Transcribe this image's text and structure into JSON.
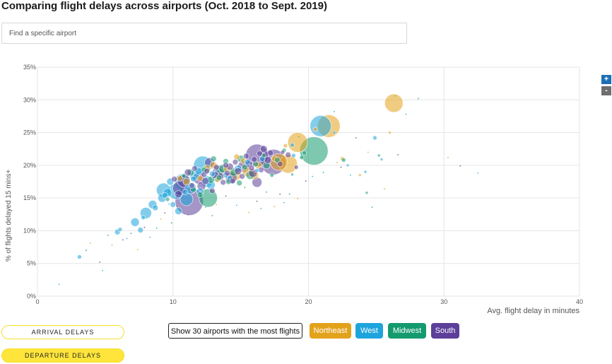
{
  "header": {
    "title": "Comparing flight delays across airports (Oct. 2018 to Sept. 2019)"
  },
  "search": {
    "placeholder": "Find a specific airport"
  },
  "zoom": {
    "in_label": "+",
    "out_label": "-"
  },
  "toggles": {
    "arrival_label": "ARRIVAL DELAYS",
    "departure_label": "DEPARTURE DELAYS"
  },
  "filters": {
    "top30_label": "Show 30 airports with the most flights",
    "regions": [
      {
        "label": "Northeast",
        "color": "#e3a21c"
      },
      {
        "label": "West",
        "color": "#1ea4dd"
      },
      {
        "label": "Midwest",
        "color": "#149a6e"
      },
      {
        "label": "South",
        "color": "#5b3f99"
      }
    ]
  },
  "chart_data": {
    "type": "scatter",
    "title": "",
    "xlabel": "Avg. flight delay in minutes",
    "ylabel": "% of flights delayed 15 mins+",
    "xlim": [
      0,
      40
    ],
    "ylim": [
      0,
      35
    ],
    "x_ticks": [
      0,
      10,
      20,
      30,
      40
    ],
    "x_tick_labels": [
      "0",
      "10",
      "20",
      "30",
      "40"
    ],
    "y_ticks": [
      0,
      5,
      10,
      15,
      20,
      25,
      30,
      35
    ],
    "y_tick_labels": [
      "0%",
      "5%",
      "10%",
      "15%",
      "20%",
      "25%",
      "30%",
      "35%"
    ],
    "grid": true,
    "series": [
      {
        "name": "Northeast",
        "color": "#e3a21c",
        "points": [
          [
            26.3,
            29.5,
            13
          ],
          [
            21.5,
            26,
            16
          ],
          [
            19.2,
            23.5,
            14
          ],
          [
            18.5,
            20.2,
            13
          ],
          [
            17.8,
            20.5,
            12
          ],
          [
            14.6,
            18.5,
            8
          ],
          [
            15.5,
            19,
            7
          ],
          [
            13.5,
            19,
            6
          ],
          [
            16,
            18.5,
            6
          ],
          [
            12.5,
            19.5,
            5
          ],
          [
            14,
            19.5,
            5
          ],
          [
            13,
            20,
            5
          ],
          [
            15.2,
            20.7,
            4
          ],
          [
            12,
            18,
            4
          ],
          [
            16.3,
            20,
            5
          ],
          [
            17.5,
            21,
            4
          ],
          [
            22.5,
            21,
            3
          ],
          [
            23.8,
            18.5,
            2
          ],
          [
            26,
            25,
            2
          ],
          [
            20.5,
            25.5,
            3
          ],
          [
            11,
            17.5,
            5
          ],
          [
            14.7,
            21.3,
            4
          ],
          [
            13.3,
            17.8,
            4
          ],
          [
            10.5,
            18,
            4
          ],
          [
            18.3,
            23,
            3
          ]
        ]
      },
      {
        "name": "West",
        "color": "#1ea4dd",
        "points": [
          [
            20.9,
            26,
            15
          ],
          [
            12.2,
            20,
            13
          ],
          [
            10.7,
            17.5,
            11
          ],
          [
            9.3,
            16.2,
            10
          ],
          [
            10.2,
            16,
            11
          ],
          [
            11,
            14.8,
            9
          ],
          [
            11.3,
            16.5,
            8
          ],
          [
            12.5,
            17.5,
            8
          ],
          [
            8,
            12.7,
            8
          ],
          [
            7.2,
            11.3,
            6
          ],
          [
            8.5,
            14,
            6
          ],
          [
            9.2,
            15,
            6
          ],
          [
            9.6,
            15.8,
            6
          ],
          [
            5.9,
            9.8,
            4
          ],
          [
            3.1,
            6,
            3
          ],
          [
            7.6,
            10.1,
            4
          ],
          [
            11.6,
            18.5,
            7
          ],
          [
            12.8,
            17,
            6
          ],
          [
            13.4,
            19,
            6
          ],
          [
            12,
            16,
            5
          ],
          [
            10.4,
            13,
            5
          ],
          [
            14.8,
            19.5,
            5
          ],
          [
            16.6,
            21,
            4
          ],
          [
            13.2,
            18,
            5
          ],
          [
            11.9,
            19.1,
            5
          ],
          [
            24.9,
            24.2,
            3
          ],
          [
            21.9,
            25,
            2
          ],
          [
            25.4,
            20.9,
            2
          ],
          [
            24.2,
            19,
            2
          ],
          [
            9.8,
            17.5,
            5
          ],
          [
            10.9,
            15.9,
            4
          ],
          [
            15.5,
            20.5,
            4
          ],
          [
            18.9,
            21.5,
            3
          ],
          [
            8.7,
            13.5,
            4
          ],
          [
            10,
            14,
            4
          ],
          [
            13.9,
            18.5,
            4
          ],
          [
            11.5,
            17.9,
            4
          ],
          [
            16.2,
            19.2,
            3
          ],
          [
            14.2,
            18,
            4
          ],
          [
            12.9,
            18.7,
            4
          ],
          [
            22.9,
            20,
            2
          ],
          [
            18.8,
            23.1,
            3
          ],
          [
            7.8,
            12,
            3
          ],
          [
            9.4,
            15.4,
            4
          ],
          [
            6.1,
            10.2,
            3
          ]
        ]
      },
      {
        "name": "Midwest",
        "color": "#149a6e",
        "points": [
          [
            20.4,
            22.2,
            20
          ],
          [
            12.6,
            15,
            13
          ],
          [
            13.7,
            19.5,
            6
          ],
          [
            14.5,
            19,
            6
          ],
          [
            15.7,
            18.5,
            6
          ],
          [
            16.9,
            20,
            5
          ],
          [
            12.8,
            17.8,
            5
          ],
          [
            11.3,
            18.9,
            5
          ],
          [
            13,
            21,
            4
          ],
          [
            15,
            21,
            5
          ],
          [
            14.1,
            17.5,
            4
          ],
          [
            17.7,
            20.8,
            4
          ],
          [
            18.2,
            22.3,
            3
          ],
          [
            19.5,
            21.2,
            3
          ],
          [
            12,
            15.5,
            4
          ],
          [
            11.5,
            16.3,
            4
          ],
          [
            9.6,
            14.8,
            3
          ],
          [
            14.9,
            17.3,
            4
          ],
          [
            16.1,
            20.2,
            4
          ],
          [
            13.4,
            18.1,
            4
          ],
          [
            25.2,
            21.5,
            2
          ],
          [
            24.3,
            15.8,
            2
          ],
          [
            22.6,
            20.8,
            3
          ],
          [
            17.3,
            18.5,
            3
          ],
          [
            18.8,
            18.6,
            2
          ],
          [
            15.3,
            19.7,
            4
          ],
          [
            13.9,
            20.6,
            4
          ],
          [
            12.3,
            19.3,
            4
          ],
          [
            10.8,
            18.4,
            3
          ],
          [
            16.7,
            21.5,
            3
          ],
          [
            19.7,
            21.9,
            3
          ]
        ]
      },
      {
        "name": "South",
        "color": "#5b3f99",
        "points": [
          [
            11.2,
            14.5,
            20
          ],
          [
            17.4,
            20.5,
            18
          ],
          [
            16.2,
            21.5,
            16
          ],
          [
            10.5,
            16.5,
            10
          ],
          [
            10.8,
            17.6,
            9
          ],
          [
            13.4,
            19,
            9
          ],
          [
            15.2,
            19.8,
            8
          ],
          [
            14.3,
            18.1,
            8
          ],
          [
            11.9,
            18,
            8
          ],
          [
            16.2,
            17.4,
            7
          ],
          [
            12.7,
            20.4,
            7
          ],
          [
            15.9,
            18.8,
            6
          ],
          [
            12.1,
            16.8,
            6
          ],
          [
            13.5,
            18.3,
            5
          ],
          [
            14.8,
            19.1,
            5
          ],
          [
            17,
            20.8,
            5
          ],
          [
            16.7,
            22.5,
            5
          ],
          [
            15.6,
            20.2,
            5
          ],
          [
            13.1,
            18.5,
            5
          ],
          [
            14.2,
            19.8,
            5
          ],
          [
            12.4,
            17.6,
            5
          ],
          [
            11.1,
            18.9,
            5
          ],
          [
            13.9,
            20,
            4
          ],
          [
            16.5,
            19.3,
            4
          ],
          [
            10.4,
            15.6,
            5
          ],
          [
            12.9,
            16.1,
            4
          ],
          [
            14.6,
            20.5,
            4
          ],
          [
            17.9,
            20.2,
            4
          ],
          [
            18.5,
            21.6,
            4
          ],
          [
            15.1,
            18.3,
            4
          ],
          [
            11.6,
            19.5,
            4
          ],
          [
            13.2,
            19.7,
            4
          ],
          [
            16,
            20.9,
            4
          ],
          [
            12.3,
            18.6,
            4
          ],
          [
            14.4,
            17.6,
            4
          ],
          [
            17.2,
            21.9,
            4
          ],
          [
            15.4,
            21.4,
            4
          ],
          [
            13.7,
            17.4,
            4
          ],
          [
            12.5,
            19.1,
            4
          ],
          [
            11.4,
            16.9,
            4
          ],
          [
            10.1,
            17.9,
            4
          ],
          [
            14,
            18.8,
            4
          ],
          [
            15.8,
            19.6,
            4
          ],
          [
            16.4,
            21.8,
            4
          ],
          [
            18.1,
            22,
            3
          ],
          [
            19.1,
            19.7,
            3
          ]
        ]
      }
    ],
    "minor_points": [
      [
        1.6,
        1.8
      ],
      [
        3.6,
        7
      ],
      [
        3.9,
        8.1
      ],
      [
        4.6,
        5.2
      ],
      [
        4.8,
        3.9
      ],
      [
        5.2,
        9.3
      ],
      [
        5.5,
        7.8
      ],
      [
        6.3,
        8.6
      ],
      [
        6.6,
        8.8
      ],
      [
        6.9,
        9.6
      ],
      [
        7.4,
        7.1
      ],
      [
        7.9,
        10.5
      ],
      [
        8.3,
        9
      ],
      [
        8.8,
        10.4
      ],
      [
        9.1,
        11.8
      ],
      [
        9.4,
        12.7
      ],
      [
        9.7,
        14.1
      ],
      [
        9.9,
        11.2
      ],
      [
        10.3,
        13.7
      ],
      [
        11.1,
        12.4
      ],
      [
        12.4,
        13.6
      ],
      [
        12.9,
        12.3
      ],
      [
        13.2,
        14
      ],
      [
        13.9,
        15.3
      ],
      [
        14.7,
        13.9
      ],
      [
        15.3,
        16.6
      ],
      [
        15.6,
        12.8
      ],
      [
        16.2,
        14.5
      ],
      [
        16.5,
        13.4
      ],
      [
        16.9,
        15.9
      ],
      [
        17.5,
        13.7
      ],
      [
        17.9,
        15.6
      ],
      [
        18.2,
        14.3
      ],
      [
        18.6,
        15.6
      ],
      [
        19.2,
        14.9
      ],
      [
        19.8,
        17.6
      ],
      [
        20.3,
        18.3
      ],
      [
        21.1,
        18.9
      ],
      [
        22.1,
        20.4
      ],
      [
        22.4,
        19.7
      ],
      [
        23.1,
        18.5
      ],
      [
        24.7,
        13.6
      ],
      [
        25.6,
        16.4
      ],
      [
        26.6,
        21.6
      ],
      [
        27.2,
        27.8
      ],
      [
        28.1,
        30.2
      ],
      [
        30.3,
        21.2
      ],
      [
        31.2,
        19.9
      ],
      [
        32.5,
        18.8
      ],
      [
        26.4,
        30.6
      ],
      [
        24.4,
        22
      ],
      [
        23.5,
        24.2
      ],
      [
        21.9,
        28.2
      ],
      [
        19.3,
        24.4
      ]
    ]
  }
}
